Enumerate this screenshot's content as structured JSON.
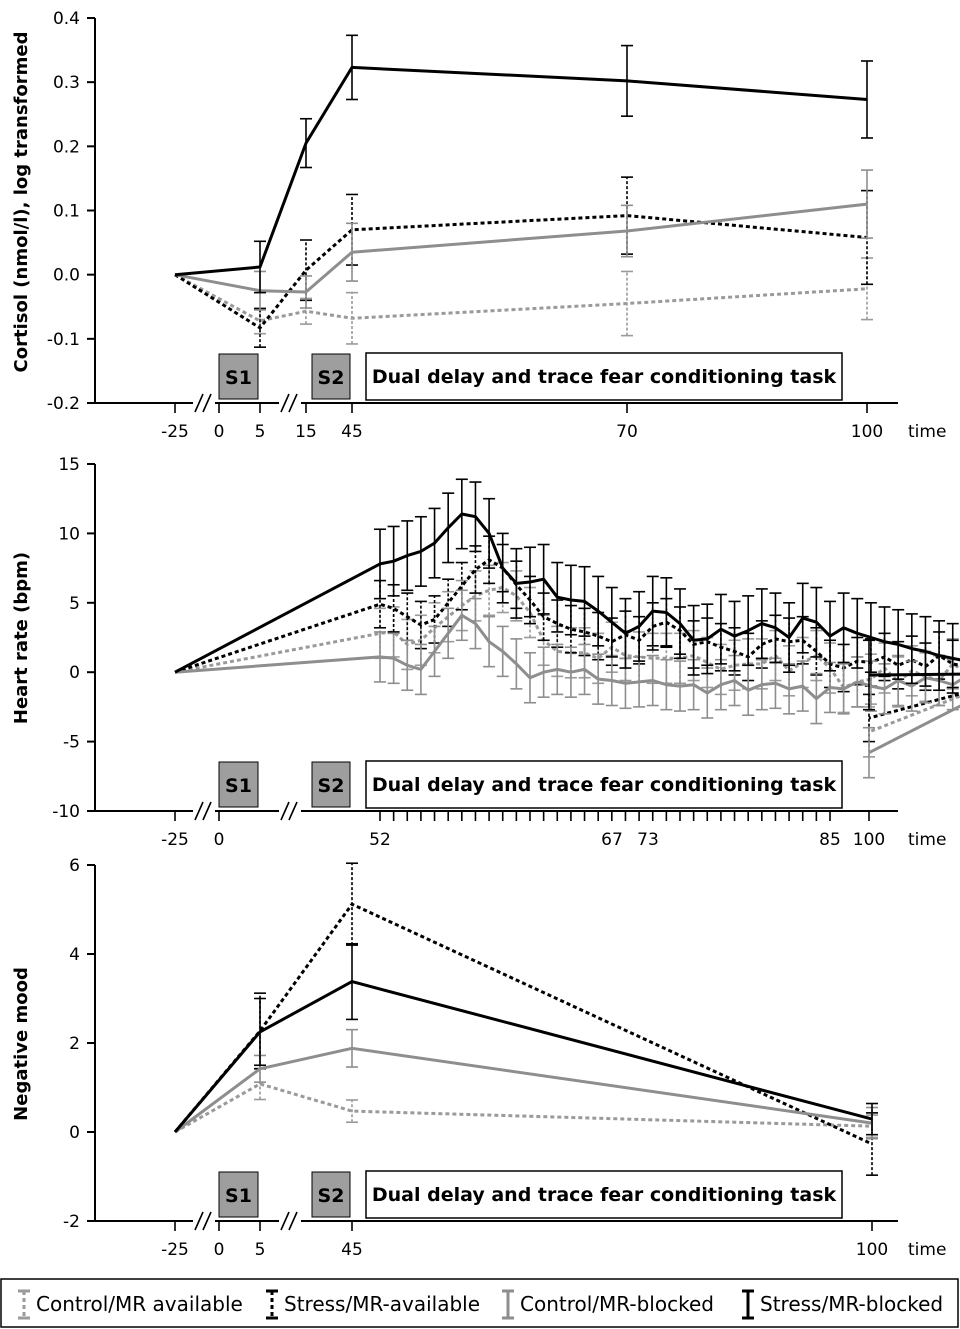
{
  "legend": [
    {
      "label": "Control/MR available",
      "color": "#9a9a9a",
      "dash": true
    },
    {
      "label": "Stress/MR-available",
      "color": "#000000",
      "dash": true
    },
    {
      "label": "Control/MR-blocked",
      "color": "#8e8e8e",
      "dash": false
    },
    {
      "label": "Stress/MR-blocked",
      "color": "#000000",
      "dash": false
    }
  ],
  "chart_data": [
    {
      "type": "line",
      "ylabel": "Cortisol (nmol/l), log transformed",
      "xlabel": "time",
      "ylim": [
        -0.2,
        0.4
      ],
      "yticks": [
        "0.4",
        "0.3",
        "0.2",
        "0.1",
        "0.0",
        "-0.1",
        "-0.2"
      ],
      "xtick_labels": [
        "-25",
        "0",
        "5",
        "15",
        "45",
        "70",
        "100"
      ],
      "phases": {
        "s1": "S1",
        "s2": "S2",
        "task": "Dual delay and trace fear conditioning task"
      },
      "series": [
        {
          "name": "Control/MR available",
          "x": [
            -25,
            5,
            15,
            45,
            70,
            100
          ],
          "values": [
            0.0,
            -0.072,
            -0.057,
            -0.068,
            -0.045,
            -0.022
          ],
          "err": [
            0,
            0.02,
            0.02,
            0.04,
            0.05,
            0.048
          ]
        },
        {
          "name": "Stress/MR-available",
          "x": [
            -25,
            5,
            15,
            45,
            70,
            100
          ],
          "values": [
            0.0,
            -0.083,
            0.007,
            0.07,
            0.092,
            0.058
          ],
          "err": [
            0,
            0.03,
            0.047,
            0.055,
            0.06,
            0.073
          ]
        },
        {
          "name": "Control/MR-blocked",
          "x": [
            -25,
            5,
            15,
            45,
            70,
            100
          ],
          "values": [
            0.0,
            -0.025,
            -0.027,
            0.035,
            0.068,
            0.11
          ],
          "err": [
            0,
            0.03,
            0.025,
            0.045,
            0.04,
            0.053
          ]
        },
        {
          "name": "Stress/MR-blocked",
          "x": [
            -25,
            5,
            15,
            45,
            70,
            100
          ],
          "values": [
            0.0,
            0.012,
            0.205,
            0.323,
            0.302,
            0.273
          ],
          "err": [
            0,
            0.04,
            0.038,
            0.05,
            0.055,
            0.06
          ]
        }
      ]
    },
    {
      "type": "line",
      "ylabel": "Heart rate (bpm)",
      "xlabel": "time",
      "ylim": [
        -10,
        15
      ],
      "yticks": [
        "15",
        "10",
        "5",
        "0",
        "-5",
        "-10"
      ],
      "xtick_labels": [
        "-25",
        "0",
        "52",
        "67",
        "73",
        "85",
        "100"
      ],
      "phases": {
        "s1": "S1",
        "s2": "S2",
        "task": "Dual delay and trace fear conditioning task"
      },
      "series": [
        {
          "name": "Control/MR available",
          "x": [
            -25,
            52,
            53,
            54,
            55,
            56,
            57,
            58,
            59,
            60,
            61,
            62,
            63,
            64,
            65,
            66,
            67,
            68,
            69,
            70,
            71,
            72,
            73,
            74,
            75,
            76,
            77,
            78,
            79,
            80,
            81,
            82,
            83,
            84,
            85,
            86,
            87,
            88,
            89,
            90,
            91,
            92,
            93,
            94,
            95,
            96,
            97,
            98,
            99,
            100
          ],
          "values": [
            0,
            2.8,
            2.9,
            2.0,
            2.3,
            3.2,
            4.0,
            4.8,
            5.5,
            5.9,
            6.1,
            5.5,
            4.3,
            2.3,
            1.5,
            1.4,
            1.4,
            1.0,
            1.8,
            1.2,
            1.1,
            1.0,
            1.0,
            1.0,
            1.2,
            0.7,
            0.2,
            0.5,
            0.6,
            0.6,
            1.2,
            0.1,
            0.7,
            1.2,
            0.3,
            -1.1,
            -0.7,
            -0.5,
            0.3,
            -0.7,
            0.1,
            -0.3,
            -0.6,
            0.6,
            0.0,
            -1.1,
            0.1,
            -0.6,
            0.0,
            -4.3
          ],
          "err": 1.8
        },
        {
          "name": "Stress/MR-available",
          "x": [
            -25,
            52,
            53,
            54,
            55,
            56,
            57,
            58,
            59,
            60,
            61,
            62,
            63,
            64,
            65,
            66,
            67,
            68,
            69,
            70,
            71,
            72,
            73,
            74,
            75,
            76,
            77,
            78,
            79,
            80,
            81,
            82,
            83,
            84,
            85,
            86,
            87,
            88,
            89,
            90,
            91,
            92,
            93,
            94,
            95,
            96,
            97,
            98,
            99,
            100
          ],
          "values": [
            0,
            4.9,
            4.6,
            4.0,
            3.4,
            3.8,
            5.0,
            6.2,
            7.4,
            8.1,
            7.5,
            6.3,
            5.2,
            4.0,
            3.5,
            3.1,
            2.9,
            2.6,
            2.2,
            2.7,
            2.3,
            3.3,
            3.6,
            3.0,
            2.0,
            2.2,
            1.8,
            1.5,
            1.1,
            2.0,
            2.4,
            2.2,
            2.3,
            1.5,
            0.6,
            0.3,
            0.8,
            0.7,
            1.1,
            0.5,
            0.9,
            0.4,
            1.2,
            0.6,
            0.4,
            0.1,
            0.0,
            -0.2,
            -0.4,
            -3.3
          ],
          "err": 1.7
        },
        {
          "name": "Control/MR-blocked",
          "x": [
            -25,
            52,
            53,
            54,
            55,
            56,
            57,
            58,
            59,
            60,
            61,
            62,
            63,
            64,
            65,
            66,
            67,
            68,
            69,
            70,
            71,
            72,
            73,
            74,
            75,
            76,
            77,
            78,
            79,
            80,
            81,
            82,
            83,
            84,
            85,
            86,
            87,
            88,
            89,
            90,
            91,
            92,
            93,
            94,
            95,
            96,
            97,
            98,
            99,
            100
          ],
          "values": [
            0,
            1.1,
            1.0,
            0.5,
            0.2,
            1.5,
            2.8,
            4.1,
            3.5,
            2.2,
            1.5,
            0.6,
            -0.4,
            0.0,
            0.2,
            0.0,
            0.2,
            -0.5,
            -0.6,
            -0.8,
            -0.7,
            -0.6,
            -0.9,
            -1.0,
            -0.9,
            -1.5,
            -0.9,
            -0.6,
            -1.3,
            -0.9,
            -0.8,
            -1.2,
            -1.0,
            -1.9,
            -1.1,
            -1.2,
            -0.7,
            -1.0,
            -1.2,
            -0.6,
            -1.0,
            -0.4,
            -0.6,
            -0.9,
            -0.3,
            -0.6,
            -0.4,
            -0.3,
            -0.2,
            -5.8
          ],
          "err": 1.8
        },
        {
          "name": "Stress/MR-blocked",
          "x": [
            -25,
            52,
            53,
            54,
            55,
            56,
            57,
            58,
            59,
            60,
            61,
            62,
            63,
            64,
            65,
            66,
            67,
            68,
            69,
            70,
            71,
            72,
            73,
            74,
            75,
            76,
            77,
            78,
            79,
            80,
            81,
            82,
            83,
            84,
            85,
            86,
            87,
            88,
            89,
            90,
            91,
            92,
            93,
            94,
            95,
            96,
            97,
            98,
            99,
            100
          ],
          "values": [
            0,
            7.8,
            8.0,
            8.4,
            8.7,
            9.3,
            10.4,
            11.4,
            11.2,
            10.0,
            7.5,
            6.4,
            6.5,
            6.7,
            5.4,
            5.2,
            5.1,
            4.4,
            3.6,
            2.8,
            3.3,
            4.4,
            4.3,
            3.5,
            2.3,
            2.4,
            3.1,
            2.6,
            3.0,
            3.5,
            3.2,
            2.5,
            3.9,
            3.6,
            2.6,
            3.2,
            2.8,
            2.5,
            2.2,
            2.0,
            1.7,
            1.5,
            1.2,
            1.0,
            0.8,
            0.6,
            0.3,
            0.1,
            -0.1,
            -0.2
          ],
          "err": 2.5
        }
      ]
    },
    {
      "type": "line",
      "ylabel": "Negative mood",
      "xlabel": "time",
      "ylim": [
        -2,
        6
      ],
      "yticks": [
        "6",
        "4",
        "2",
        "0",
        "-2"
      ],
      "xtick_labels": [
        "-25",
        "0",
        "5",
        "45",
        "100"
      ],
      "phases": {
        "s1": "S1",
        "s2": "S2",
        "task": "Dual delay and trace fear conditioning task"
      },
      "series": [
        {
          "name": "Control/MR available",
          "x": [
            -25,
            5,
            45,
            100
          ],
          "values": [
            0.0,
            1.08,
            0.47,
            0.13
          ],
          "err": [
            0,
            0.35,
            0.25,
            0.25
          ]
        },
        {
          "name": "Stress/MR-available",
          "x": [
            -25,
            5,
            45,
            100
          ],
          "values": [
            0.0,
            2.27,
            5.12,
            -0.27
          ],
          "err": [
            0,
            0.85,
            0.92,
            0.7
          ]
        },
        {
          "name": "Control/MR-blocked",
          "x": [
            -25,
            5,
            45,
            100
          ],
          "values": [
            0.0,
            1.42,
            1.88,
            0.2
          ],
          "err": [
            0,
            0.3,
            0.42,
            0.35
          ]
        },
        {
          "name": "Stress/MR-blocked",
          "x": [
            -25,
            5,
            45,
            100
          ],
          "values": [
            0.0,
            2.25,
            3.38,
            0.29
          ],
          "err": [
            0,
            0.75,
            0.85,
            0.35
          ]
        }
      ]
    }
  ]
}
